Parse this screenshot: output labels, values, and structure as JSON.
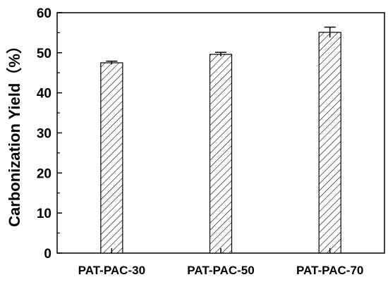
{
  "chart_data": {
    "type": "bar",
    "categories": [
      "PAT-PAC-30",
      "PAT-PAC-50",
      "PAT-PAC-70"
    ],
    "values": [
      47.5,
      49.6,
      55.1
    ],
    "errors": [
      0.4,
      0.5,
      1.3
    ],
    "title": "",
    "xlabel": "",
    "ylabel": "Carbonization Yield（%）",
    "ylim": [
      0,
      60
    ],
    "yticks": [
      0,
      10,
      20,
      30,
      40,
      50,
      60
    ],
    "grid": false,
    "legend": "none",
    "bar_fill": "hatched",
    "colors": {
      "bar_stroke": "#000000",
      "hatch": "#000000",
      "background": "#ffffff"
    }
  }
}
